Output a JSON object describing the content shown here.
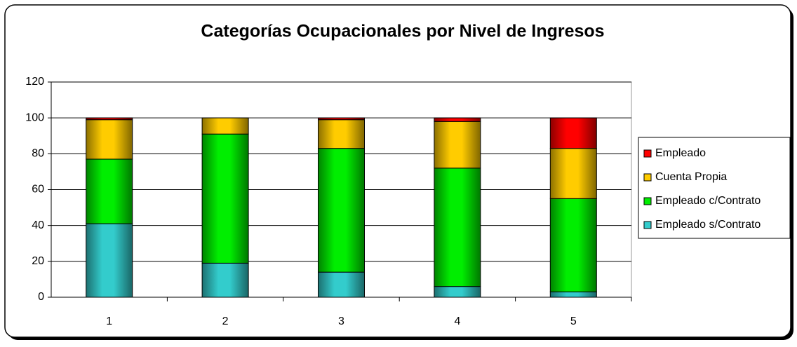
{
  "chart_data": {
    "type": "stacked_bar",
    "title": "Categorías Ocupacionales por Nivel de Ingresos",
    "categories": [
      "1",
      "2",
      "3",
      "4",
      "5"
    ],
    "series": [
      {
        "name": "Empleado s/Contrato",
        "color": "#33cccc",
        "values": [
          41,
          19,
          14,
          6,
          3
        ]
      },
      {
        "name": "Empleado c/Contrato",
        "color": "#00ee00",
        "values": [
          36,
          72,
          69,
          66,
          52
        ]
      },
      {
        "name": "Cuenta Propia",
        "color": "#ffcc00",
        "values": [
          22,
          9,
          16,
          26,
          28
        ]
      },
      {
        "name": "Empleado",
        "color": "#ff0000",
        "values": [
          1,
          0,
          1,
          2,
          17
        ]
      }
    ],
    "ylim": [
      0,
      120
    ],
    "yticks": [
      0,
      20,
      40,
      60,
      80,
      100,
      120
    ],
    "grid": true,
    "legend": "right"
  }
}
